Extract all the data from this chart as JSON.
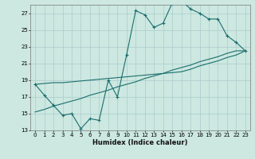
{
  "xlabel": "Humidex (Indice chaleur)",
  "bg_color": "#cce8e0",
  "grid_color": "#aacccc",
  "line_color": "#1a6e6e",
  "xlim": [
    -0.5,
    23.5
  ],
  "ylim": [
    13,
    28
  ],
  "yticks": [
    13,
    15,
    17,
    19,
    21,
    23,
    25,
    27
  ],
  "xticks": [
    0,
    1,
    2,
    3,
    4,
    5,
    6,
    7,
    8,
    9,
    10,
    11,
    12,
    13,
    14,
    15,
    16,
    17,
    18,
    19,
    20,
    21,
    22,
    23
  ],
  "main_x": [
    0,
    1,
    2,
    3,
    4,
    5,
    6,
    7,
    8,
    9,
    10,
    11,
    12,
    13,
    14,
    15,
    16,
    17,
    18,
    19,
    20,
    21,
    22,
    23
  ],
  "main_y": [
    18.5,
    17.2,
    16.0,
    14.8,
    15.0,
    13.2,
    14.4,
    14.2,
    19.0,
    17.0,
    22.0,
    27.3,
    26.8,
    25.3,
    25.8,
    28.2,
    28.5,
    27.5,
    27.0,
    26.3,
    26.3,
    24.3,
    23.5,
    22.5
  ],
  "trend1_x": [
    0,
    1,
    2,
    3,
    4,
    5,
    6,
    7,
    8,
    9,
    10,
    11,
    12,
    13,
    14,
    15,
    16,
    17,
    18,
    19,
    20,
    21,
    22,
    23
  ],
  "trend1_y": [
    15.2,
    15.5,
    15.9,
    16.2,
    16.5,
    16.8,
    17.2,
    17.5,
    17.8,
    18.2,
    18.5,
    18.8,
    19.2,
    19.5,
    19.8,
    20.2,
    20.5,
    20.8,
    21.2,
    21.5,
    21.8,
    22.2,
    22.5,
    22.5
  ],
  "trend2_x": [
    0,
    1,
    2,
    3,
    4,
    5,
    6,
    7,
    8,
    9,
    10,
    11,
    12,
    13,
    14,
    15,
    16,
    17,
    18,
    19,
    20,
    21,
    22,
    23
  ],
  "trend2_y": [
    18.5,
    18.6,
    18.7,
    18.7,
    18.8,
    18.9,
    19.0,
    19.1,
    19.2,
    19.3,
    19.4,
    19.5,
    19.6,
    19.7,
    19.8,
    19.9,
    20.0,
    20.3,
    20.7,
    21.0,
    21.3,
    21.7,
    22.0,
    22.5
  ]
}
